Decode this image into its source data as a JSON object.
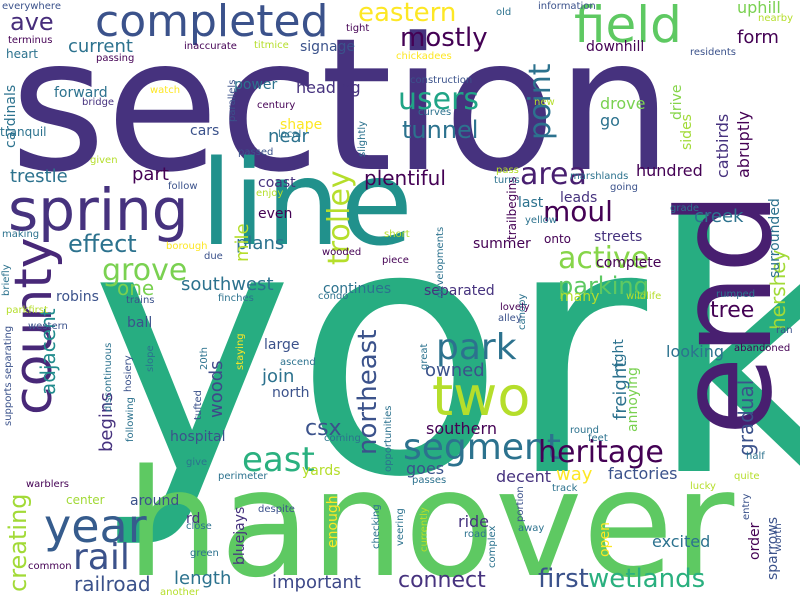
{
  "palette": {
    "background": "#ffffff"
  },
  "words": [
    {
      "text": "york",
      "color": "#27ad81"
    },
    {
      "text": "section",
      "color": "#46327e"
    },
    {
      "text": "hanover",
      "color": "#5ec962"
    },
    {
      "text": "end",
      "color": "#481f70"
    },
    {
      "text": "line",
      "color": "#21918c"
    },
    {
      "text": "completed",
      "color": "#3b528b"
    },
    {
      "text": "field",
      "color": "#5ec962"
    },
    {
      "text": "spring",
      "color": "#46327e"
    },
    {
      "text": "county",
      "color": "#482878"
    },
    {
      "text": "two",
      "color": "#b5de2b"
    },
    {
      "text": "year",
      "color": "#365c8d"
    },
    {
      "text": "rail",
      "color": "#3b528b"
    },
    {
      "text": "segment",
      "color": "#2c728e"
    },
    {
      "text": "heritage",
      "color": "#440154"
    },
    {
      "text": "east",
      "color": "#2ab07f"
    },
    {
      "text": "park",
      "color": "#2c728e"
    },
    {
      "text": "grove",
      "color": "#7ad151"
    },
    {
      "text": "trolley",
      "color": "#b5de2b"
    },
    {
      "text": "users",
      "color": "#20a486"
    },
    {
      "text": "mostly",
      "color": "#440154"
    },
    {
      "text": "eastern",
      "color": "#fde725"
    },
    {
      "text": "tunnel",
      "color": "#2c728e"
    },
    {
      "text": "point",
      "color": "#2c728e"
    },
    {
      "text": "moul",
      "color": "#440154"
    },
    {
      "text": "area",
      "color": "#481f70"
    },
    {
      "text": "active",
      "color": "#86d549"
    },
    {
      "text": "parking",
      "color": "#5ec962"
    },
    {
      "text": "hershey",
      "color": "#a2da37"
    },
    {
      "text": "gradual",
      "color": "#3b528b"
    },
    {
      "text": "northeast",
      "color": "#3b528b"
    },
    {
      "text": "wetlands",
      "color": "#2ab07f"
    },
    {
      "text": "first",
      "color": "#3b528b"
    },
    {
      "text": "connect",
      "color": "#46327e"
    },
    {
      "text": "important",
      "color": "#3e4989"
    },
    {
      "text": "railroad",
      "color": "#3b528b"
    },
    {
      "text": "length",
      "color": "#2c728e"
    },
    {
      "text": "creating",
      "color": "#a2da37"
    },
    {
      "text": "effect",
      "color": "#2c728e"
    },
    {
      "text": "adjacent",
      "color": "#228c8d"
    },
    {
      "text": "plentiful",
      "color": "#440154"
    },
    {
      "text": "ave",
      "color": "#472d7b"
    },
    {
      "text": "current",
      "color": "#2c728e"
    },
    {
      "text": "one",
      "color": "#7ad151"
    },
    {
      "text": "southwest",
      "color": "#2c728e"
    },
    {
      "text": "plans",
      "color": "#2c728e"
    },
    {
      "text": "owned",
      "color": "#3b528b"
    },
    {
      "text": "freight",
      "color": "#2c728e"
    },
    {
      "text": "woods",
      "color": "#3e4989"
    },
    {
      "text": "csx",
      "color": "#3b528b"
    },
    {
      "text": "form",
      "color": "#440154"
    },
    {
      "text": "mile",
      "color": "#b5de2b"
    },
    {
      "text": "tree",
      "color": "#440154"
    },
    {
      "text": "join",
      "color": "#2c728e"
    },
    {
      "text": "begins",
      "color": "#46327e"
    },
    {
      "text": "trestle",
      "color": "#2c728e"
    },
    {
      "text": "near",
      "color": "#2c728e"
    },
    {
      "text": "part",
      "color": "#440154"
    },
    {
      "text": "signage",
      "color": "#3b528b"
    },
    {
      "text": "heading",
      "color": "#46327e"
    },
    {
      "text": "southern",
      "color": "#440154"
    },
    {
      "text": "excited",
      "color": "#2c728e"
    },
    {
      "text": "ride",
      "color": "#46327e"
    },
    {
      "text": "decent",
      "color": "#46327e"
    },
    {
      "text": "goes",
      "color": "#3b528b"
    },
    {
      "text": "factories",
      "color": "#3b528b"
    },
    {
      "text": "way",
      "color": "#fde725"
    },
    {
      "text": "looking",
      "color": "#2c728e"
    },
    {
      "text": "hundred",
      "color": "#440154"
    },
    {
      "text": "creek",
      "color": "#2c728e"
    },
    {
      "text": "drove",
      "color": "#7ad151"
    },
    {
      "text": "go",
      "color": "#2c728e"
    },
    {
      "text": "downhill",
      "color": "#440154"
    },
    {
      "text": "uphill",
      "color": "#7ad151"
    },
    {
      "text": "catbirds",
      "color": "#46327e"
    },
    {
      "text": "abruptly",
      "color": "#440154"
    },
    {
      "text": "surrounded",
      "color": "#2c728e"
    },
    {
      "text": "leads",
      "color": "#46327e"
    },
    {
      "text": "last",
      "color": "#2c728e"
    },
    {
      "text": "summer",
      "color": "#440154"
    },
    {
      "text": "streets",
      "color": "#46327e"
    },
    {
      "text": "complete",
      "color": "#440154"
    },
    {
      "text": "continues",
      "color": "#2c728e"
    },
    {
      "text": "separated",
      "color": "#46327e"
    },
    {
      "text": "many",
      "color": "#b5de2b"
    },
    {
      "text": "onto",
      "color": "#440154"
    },
    {
      "text": "robins",
      "color": "#3b528b"
    },
    {
      "text": "ball",
      "color": "#3b528b"
    },
    {
      "text": "large",
      "color": "#3b528b"
    },
    {
      "text": "north",
      "color": "#3b528b"
    },
    {
      "text": "hospital",
      "color": "#3b528b"
    },
    {
      "text": "enough",
      "color": "#fde725"
    },
    {
      "text": "yards",
      "color": "#b5de2b"
    },
    {
      "text": "around",
      "color": "#3b528b"
    },
    {
      "text": "center",
      "color": "#a2da37"
    },
    {
      "text": "rd",
      "color": "#46327e"
    },
    {
      "text": "bluejays",
      "color": "#46327e"
    },
    {
      "text": "open",
      "color": "#fde725"
    },
    {
      "text": "order",
      "color": "#440154"
    },
    {
      "text": "sparrows",
      "color": "#3b528b"
    },
    {
      "text": "right",
      "color": "#2c728e"
    },
    {
      "text": "annoying",
      "color": "#7ad151"
    },
    {
      "text": "drive",
      "color": "#86d549"
    },
    {
      "text": "sides",
      "color": "#a2da37"
    },
    {
      "text": "trailbegins",
      "color": "#440154"
    },
    {
      "text": "shape",
      "color": "#fde725"
    },
    {
      "text": "cars",
      "color": "#3b528b"
    },
    {
      "text": "coast",
      "color": "#46327e"
    },
    {
      "text": "even",
      "color": "#440154"
    },
    {
      "text": "power",
      "color": "#2c728e"
    },
    {
      "text": "forward",
      "color": "#2c728e"
    },
    {
      "text": "cardinals",
      "color": "#2c728e"
    },
    {
      "text": "heart",
      "color": "#2c728e"
    },
    {
      "text": "tranquil",
      "color": "#2c728e"
    },
    {
      "text": "bridge",
      "color": "#46327e"
    },
    {
      "text": "inaccurate",
      "color": "#440154"
    },
    {
      "text": "titmice",
      "color": "#b5de2b"
    },
    {
      "text": "passing",
      "color": "#440154"
    },
    {
      "text": "terminus",
      "color": "#440154"
    },
    {
      "text": "everywhere",
      "color": "#3b528b"
    },
    {
      "text": "tight",
      "color": "#440154"
    },
    {
      "text": "old",
      "color": "#2c728e"
    },
    {
      "text": "information",
      "color": "#3b528b"
    },
    {
      "text": "nearby",
      "color": "#b5de2b"
    },
    {
      "text": "residents",
      "color": "#3b528b"
    },
    {
      "text": "construction",
      "color": "#3b528b"
    },
    {
      "text": "chickadees",
      "color": "#fde725"
    },
    {
      "text": "curves",
      "color": "#2c728e"
    },
    {
      "text": "century",
      "color": "#440154"
    },
    {
      "text": "watch",
      "color": "#fde725"
    },
    {
      "text": "passed",
      "color": "#3b528b"
    },
    {
      "text": "parallels",
      "color": "#3b528b"
    },
    {
      "text": "local",
      "color": "#2c728e"
    },
    {
      "text": "new",
      "color": "#b5de2b"
    },
    {
      "text": "slightly",
      "color": "#2c728e"
    },
    {
      "text": "pass",
      "color": "#b5de2b"
    },
    {
      "text": "turns",
      "color": "#2c728e"
    },
    {
      "text": "marshlands",
      "color": "#2c728e"
    },
    {
      "text": "going",
      "color": "#3b528b"
    },
    {
      "text": "grade",
      "color": "#2c728e"
    },
    {
      "text": "given",
      "color": "#b5de2b"
    },
    {
      "text": "follow",
      "color": "#3b528b"
    },
    {
      "text": "enjoy",
      "color": "#b5de2b"
    },
    {
      "text": "yellow",
      "color": "#2c728e"
    },
    {
      "text": "short",
      "color": "#b5de2b"
    },
    {
      "text": "developments",
      "color": "#2c728e"
    },
    {
      "text": "making",
      "color": "#2c728e"
    },
    {
      "text": "borough",
      "color": "#fde725"
    },
    {
      "text": "due",
      "color": "#3b528b"
    },
    {
      "text": "wooded",
      "color": "#440154"
    },
    {
      "text": "piece",
      "color": "#440154"
    },
    {
      "text": "briefly",
      "color": "#2c728e"
    },
    {
      "text": "trains",
      "color": "#3b528b"
    },
    {
      "text": "finches",
      "color": "#2c728e"
    },
    {
      "text": "condo",
      "color": "#2c728e"
    },
    {
      "text": "wildlife",
      "color": "#b5de2b"
    },
    {
      "text": "rumped",
      "color": "#2c728e"
    },
    {
      "text": "parkfirst",
      "color": "#b5de2b"
    },
    {
      "text": "western",
      "color": "#3b528b"
    },
    {
      "text": "canopy",
      "color": "#2c728e"
    },
    {
      "text": "lovely",
      "color": "#440154"
    },
    {
      "text": "alley",
      "color": "#3b528b"
    },
    {
      "text": "ran",
      "color": "#3b528b"
    },
    {
      "text": "abandoned",
      "color": "#440154"
    },
    {
      "text": "supports separating",
      "color": "#3b528b"
    },
    {
      "text": "discontinuous",
      "color": "#2c728e"
    },
    {
      "text": "hosiery",
      "color": "#3b528b"
    },
    {
      "text": "20th",
      "color": "#2c728e"
    },
    {
      "text": "staying",
      "color": "#fde725"
    },
    {
      "text": "slope",
      "color": "#2c728e"
    },
    {
      "text": "ascend",
      "color": "#2c728e"
    },
    {
      "text": "great",
      "color": "#2c728e"
    },
    {
      "text": "opportunities",
      "color": "#2c728e"
    },
    {
      "text": "tufted",
      "color": "#3b528b"
    },
    {
      "text": "following",
      "color": "#2c728e"
    },
    {
      "text": "coming",
      "color": "#2c728e"
    },
    {
      "text": "round",
      "color": "#2c728e"
    },
    {
      "text": "feet",
      "color": "#2c728e"
    },
    {
      "text": "half",
      "color": "#2c728e"
    },
    {
      "text": "warblers",
      "color": "#440154"
    },
    {
      "text": "give",
      "color": "#2c728e"
    },
    {
      "text": "perimeter",
      "color": "#2c728e"
    },
    {
      "text": "passes",
      "color": "#2c728e"
    },
    {
      "text": "track",
      "color": "#2c728e"
    },
    {
      "text": "lucky",
      "color": "#b5de2b"
    },
    {
      "text": "quite",
      "color": "#b5de2b"
    },
    {
      "text": "close",
      "color": "#2c728e"
    },
    {
      "text": "despite",
      "color": "#3b528b"
    },
    {
      "text": "green",
      "color": "#2c728e"
    },
    {
      "text": "checking",
      "color": "#2c728e"
    },
    {
      "text": "veering",
      "color": "#2c728e"
    },
    {
      "text": "currently",
      "color": "#b5de2b"
    },
    {
      "text": "portion",
      "color": "#3b528b"
    },
    {
      "text": "complex",
      "color": "#2c728e"
    },
    {
      "text": "away",
      "color": "#2c728e"
    },
    {
      "text": "road",
      "color": "#2c728e"
    },
    {
      "text": "entry",
      "color": "#3b528b"
    },
    {
      "text": "worth",
      "color": "#3b528b"
    },
    {
      "text": "common",
      "color": "#440154"
    },
    {
      "text": "another",
      "color": "#b5de2b"
    }
  ]
}
